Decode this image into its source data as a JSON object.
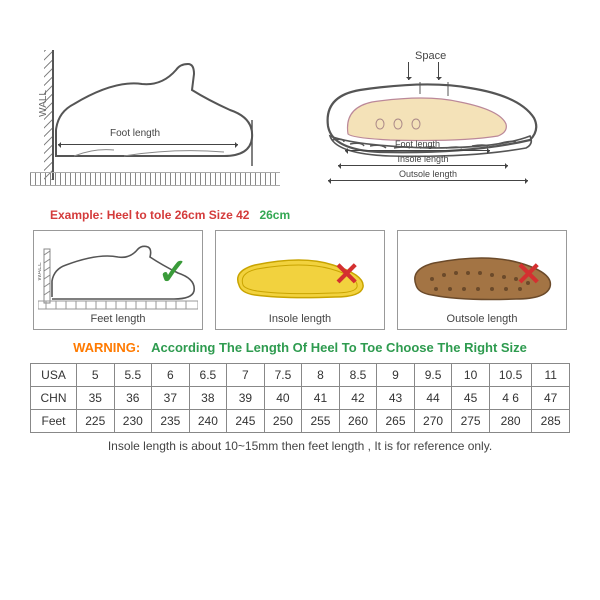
{
  "colors": {
    "example_red": "#d43b3b",
    "example_green": "#34a853",
    "warn_orange": "#ff7a00",
    "warn_green": "#2e9b4f",
    "check_green": "#3a9b3a",
    "cross_red": "#d43030",
    "foot_fill": "#f4e2b8",
    "insole_yellow": "#f2d23e",
    "outsole_brown": "#a37444"
  },
  "top_left": {
    "wall_label": "WALL",
    "foot_length_label": "Foot length"
  },
  "top_right": {
    "space_label": "Space",
    "foot_length_label": "Foot length",
    "insole_length_label": "Insole length",
    "outsole_length_label": "Outsole length"
  },
  "example": {
    "prefix": "Example:",
    "text": "Heel to tole 26cm Size 42",
    "suffix": "26cm"
  },
  "boxes": {
    "feet": {
      "label": "Feet length",
      "mark": "check",
      "wall_label": "WALL"
    },
    "insole": {
      "label": "Insole length",
      "mark": "cross"
    },
    "outsole": {
      "label": "Outsole length",
      "mark": "cross"
    }
  },
  "warning": {
    "label": "WARNING:",
    "text": "According The Length Of Heel To Toe Choose The Right Size"
  },
  "table": {
    "rows": [
      {
        "label": "USA",
        "cells": [
          "5",
          "5.5",
          "6",
          "6.5",
          "7",
          "7.5",
          "8",
          "8.5",
          "9",
          "9.5",
          "10",
          "10.5",
          "11"
        ]
      },
      {
        "label": "CHN",
        "cells": [
          "35",
          "36",
          "37",
          "38",
          "39",
          "40",
          "41",
          "42",
          "43",
          "44",
          "45",
          "4 6",
          "47"
        ]
      },
      {
        "label": "Feet",
        "cells": [
          "225",
          "230",
          "235",
          "240",
          "245",
          "250",
          "255",
          "260",
          "265",
          "270",
          "275",
          "280",
          "285"
        ]
      }
    ],
    "col_count": 13
  },
  "footnote": "Insole length is about 10~15mm then feet length , It is for reference only."
}
